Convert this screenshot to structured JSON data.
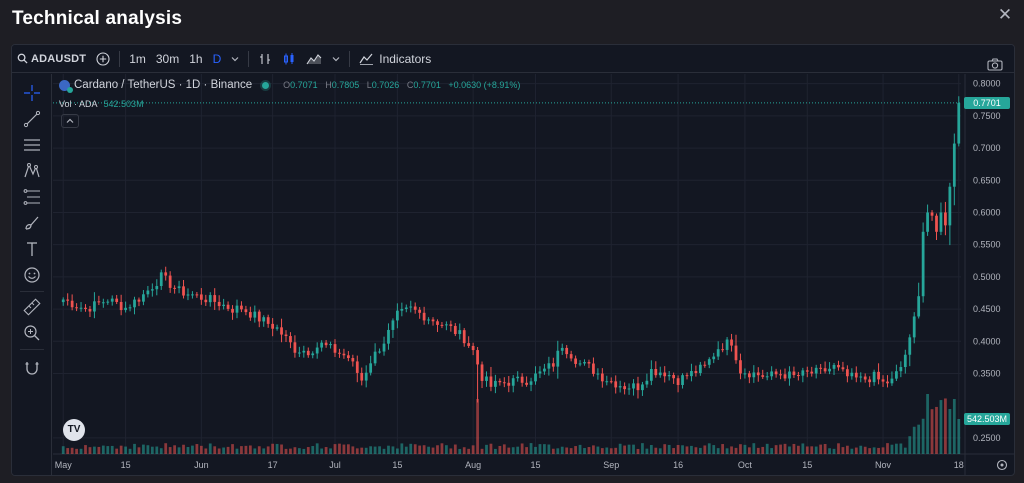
{
  "modal": {
    "title": "Technical analysis"
  },
  "toolbar": {
    "symbol": "ADAUSDT",
    "intervals": [
      "1m",
      "30m",
      "1h",
      "D"
    ],
    "indicators_label": "Indicators"
  },
  "legend": {
    "title": "Cardano / TetherUS · 1D · Binance",
    "open_label": "O",
    "open": "0.7071",
    "high_label": "H",
    "high": "0.7805",
    "low_label": "L",
    "low": "0.7026",
    "close_label": "C",
    "close": "0.7701",
    "change": "+0.0630 (+8.91%)"
  },
  "volume_legend": {
    "label": "Vol · ADA",
    "value": "542.503M"
  },
  "price_tags": {
    "last_price": "0.7701",
    "last_volume": "542.503M"
  },
  "colors": {
    "up": "#26a69a",
    "down": "#ef5350",
    "bg": "#131722",
    "grid": "#1f2330"
  },
  "chart_data": {
    "type": "candlestick",
    "y_ticks": [
      "0.8000",
      "0.7500",
      "0.7000",
      "0.6500",
      "0.6000",
      "0.5500",
      "0.5000",
      "0.4500",
      "0.4000",
      "0.3500",
      "0.2500"
    ],
    "y_tick_values": [
      0.8,
      0.75,
      0.7,
      0.65,
      0.6,
      0.55,
      0.5,
      0.45,
      0.4,
      0.35,
      0.25
    ],
    "ylim": [
      0.225,
      0.815
    ],
    "x_ticks": [
      {
        "label": "May",
        "day": 0
      },
      {
        "label": "15",
        "day": 14
      },
      {
        "label": "Jun",
        "day": 31
      },
      {
        "label": "17",
        "day": 47
      },
      {
        "label": "Jul",
        "day": 61
      },
      {
        "label": "15",
        "day": 75
      },
      {
        "label": "Aug",
        "day": 92
      },
      {
        "label": "15",
        "day": 106
      },
      {
        "label": "Sep",
        "day": 123
      },
      {
        "label": "16",
        "day": 138
      },
      {
        "label": "Oct",
        "day": 153
      },
      {
        "label": "15",
        "day": 167
      },
      {
        "label": "Nov",
        "day": 184
      },
      {
        "label": "18",
        "day": 201
      }
    ],
    "keypoints": [
      [
        0,
        0.465
      ],
      [
        5,
        0.45
      ],
      [
        10,
        0.465
      ],
      [
        14,
        0.452
      ],
      [
        18,
        0.472
      ],
      [
        22,
        0.5
      ],
      [
        26,
        0.478
      ],
      [
        30,
        0.47
      ],
      [
        34,
        0.462
      ],
      [
        38,
        0.45
      ],
      [
        40,
        0.452
      ],
      [
        44,
        0.435
      ],
      [
        48,
        0.42
      ],
      [
        52,
        0.388
      ],
      [
        55,
        0.385
      ],
      [
        58,
        0.395
      ],
      [
        61,
        0.385
      ],
      [
        64,
        0.375
      ],
      [
        67,
        0.34
      ],
      [
        69,
        0.37
      ],
      [
        72,
        0.4
      ],
      [
        75,
        0.44
      ],
      [
        78,
        0.45
      ],
      [
        81,
        0.44
      ],
      [
        84,
        0.43
      ],
      [
        87,
        0.42
      ],
      [
        90,
        0.405
      ],
      [
        92,
        0.385
      ],
      [
        94,
        0.345
      ],
      [
        96,
        0.33
      ],
      [
        98,
        0.335
      ],
      [
        101,
        0.338
      ],
      [
        104,
        0.34
      ],
      [
        107,
        0.35
      ],
      [
        110,
        0.365
      ],
      [
        112,
        0.395
      ],
      [
        114,
        0.38
      ],
      [
        116,
        0.365
      ],
      [
        118,
        0.36
      ],
      [
        121,
        0.345
      ],
      [
        123,
        0.338
      ],
      [
        126,
        0.33
      ],
      [
        129,
        0.33
      ],
      [
        132,
        0.355
      ],
      [
        135,
        0.352
      ],
      [
        138,
        0.34
      ],
      [
        141,
        0.35
      ],
      [
        144,
        0.36
      ],
      [
        147,
        0.39
      ],
      [
        150,
        0.4
      ],
      [
        152,
        0.355
      ],
      [
        155,
        0.35
      ],
      [
        158,
        0.345
      ],
      [
        161,
        0.35
      ],
      [
        164,
        0.345
      ],
      [
        167,
        0.35
      ],
      [
        170,
        0.352
      ],
      [
        173,
        0.36
      ],
      [
        176,
        0.345
      ],
      [
        179,
        0.34
      ],
      [
        182,
        0.345
      ],
      [
        184,
        0.335
      ],
      [
        186,
        0.338
      ],
      [
        188,
        0.36
      ],
      [
        190,
        0.4
      ],
      [
        192,
        0.47
      ],
      [
        193,
        0.57
      ],
      [
        194,
        0.6
      ],
      [
        195,
        0.595
      ],
      [
        196,
        0.57
      ],
      [
        197,
        0.6
      ],
      [
        198,
        0.58
      ],
      [
        199,
        0.64
      ],
      [
        200,
        0.707
      ],
      [
        201,
        0.7701
      ]
    ],
    "current_price": 0.7701,
    "volume_current": "542.503M"
  }
}
